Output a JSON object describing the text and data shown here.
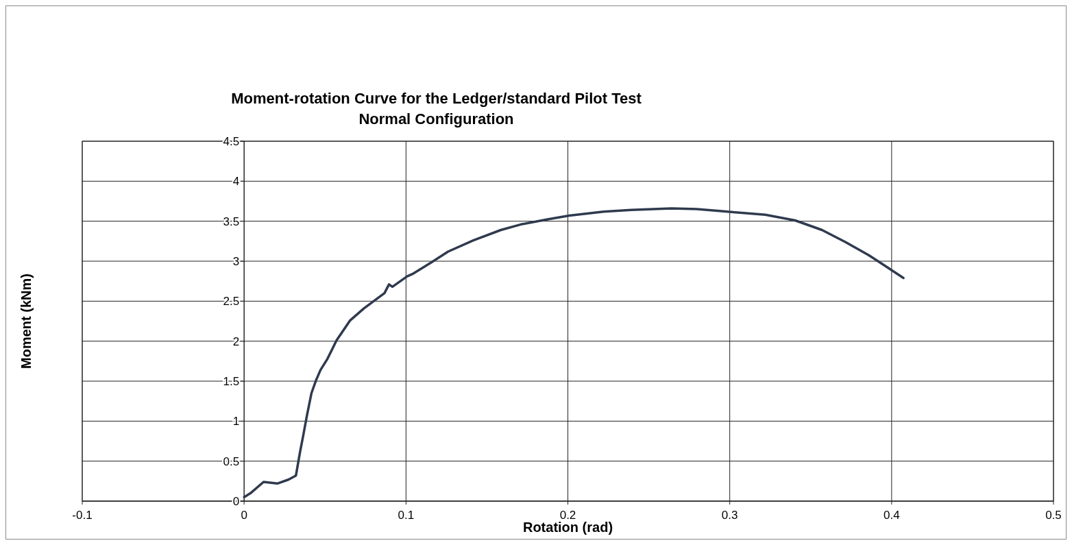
{
  "chart_data": {
    "type": "line",
    "title": "Moment-rotation Curve for the Ledger/standard Pilot Test",
    "subtitle": "Normal Configuration",
    "xlabel": "Rotation (rad)",
    "ylabel": "Moment (kNm)",
    "xlim": [
      -0.1,
      0.5
    ],
    "xticks": [
      -0.1,
      0,
      0.1,
      0.2,
      0.3,
      0.4,
      0.5
    ],
    "ylim": [
      0,
      4.5
    ],
    "yticks": [
      0,
      0.5,
      1,
      1.5,
      2,
      2.5,
      3,
      3.5,
      4,
      4.5
    ],
    "grid": true,
    "marker": "none",
    "line_style": "solid",
    "series": [
      {
        "color": "#2f3a4e",
        "x": [
          0,
          0.004,
          0.012,
          0.0205,
          0.0275,
          0.032,
          0.0345,
          0.0367,
          0.0388,
          0.0416,
          0.0444,
          0.0472,
          0.0515,
          0.0571,
          0.0655,
          0.074,
          0.0867,
          0.0895,
          0.0916,
          0.1007,
          0.104,
          0.116,
          0.126,
          0.1416,
          0.1586,
          0.171,
          0.1868,
          0.2008,
          0.222,
          0.239,
          0.264,
          0.281,
          0.2925,
          0.3036,
          0.322,
          0.3404,
          0.357,
          0.3714,
          0.3855,
          0.3953,
          0.4073
        ],
        "values": [
          0.05,
          0.1,
          0.24,
          0.22,
          0.27,
          0.32,
          0.61,
          0.84,
          1.07,
          1.35,
          1.51,
          1.64,
          1.78,
          2.01,
          2.26,
          2.41,
          2.6,
          2.71,
          2.68,
          2.81,
          2.84,
          2.99,
          3.12,
          3.26,
          3.39,
          3.46,
          3.52,
          3.57,
          3.62,
          3.64,
          3.66,
          3.65,
          3.63,
          3.61,
          3.58,
          3.51,
          3.39,
          3.24,
          3.08,
          2.95,
          2.79
        ]
      }
    ]
  }
}
